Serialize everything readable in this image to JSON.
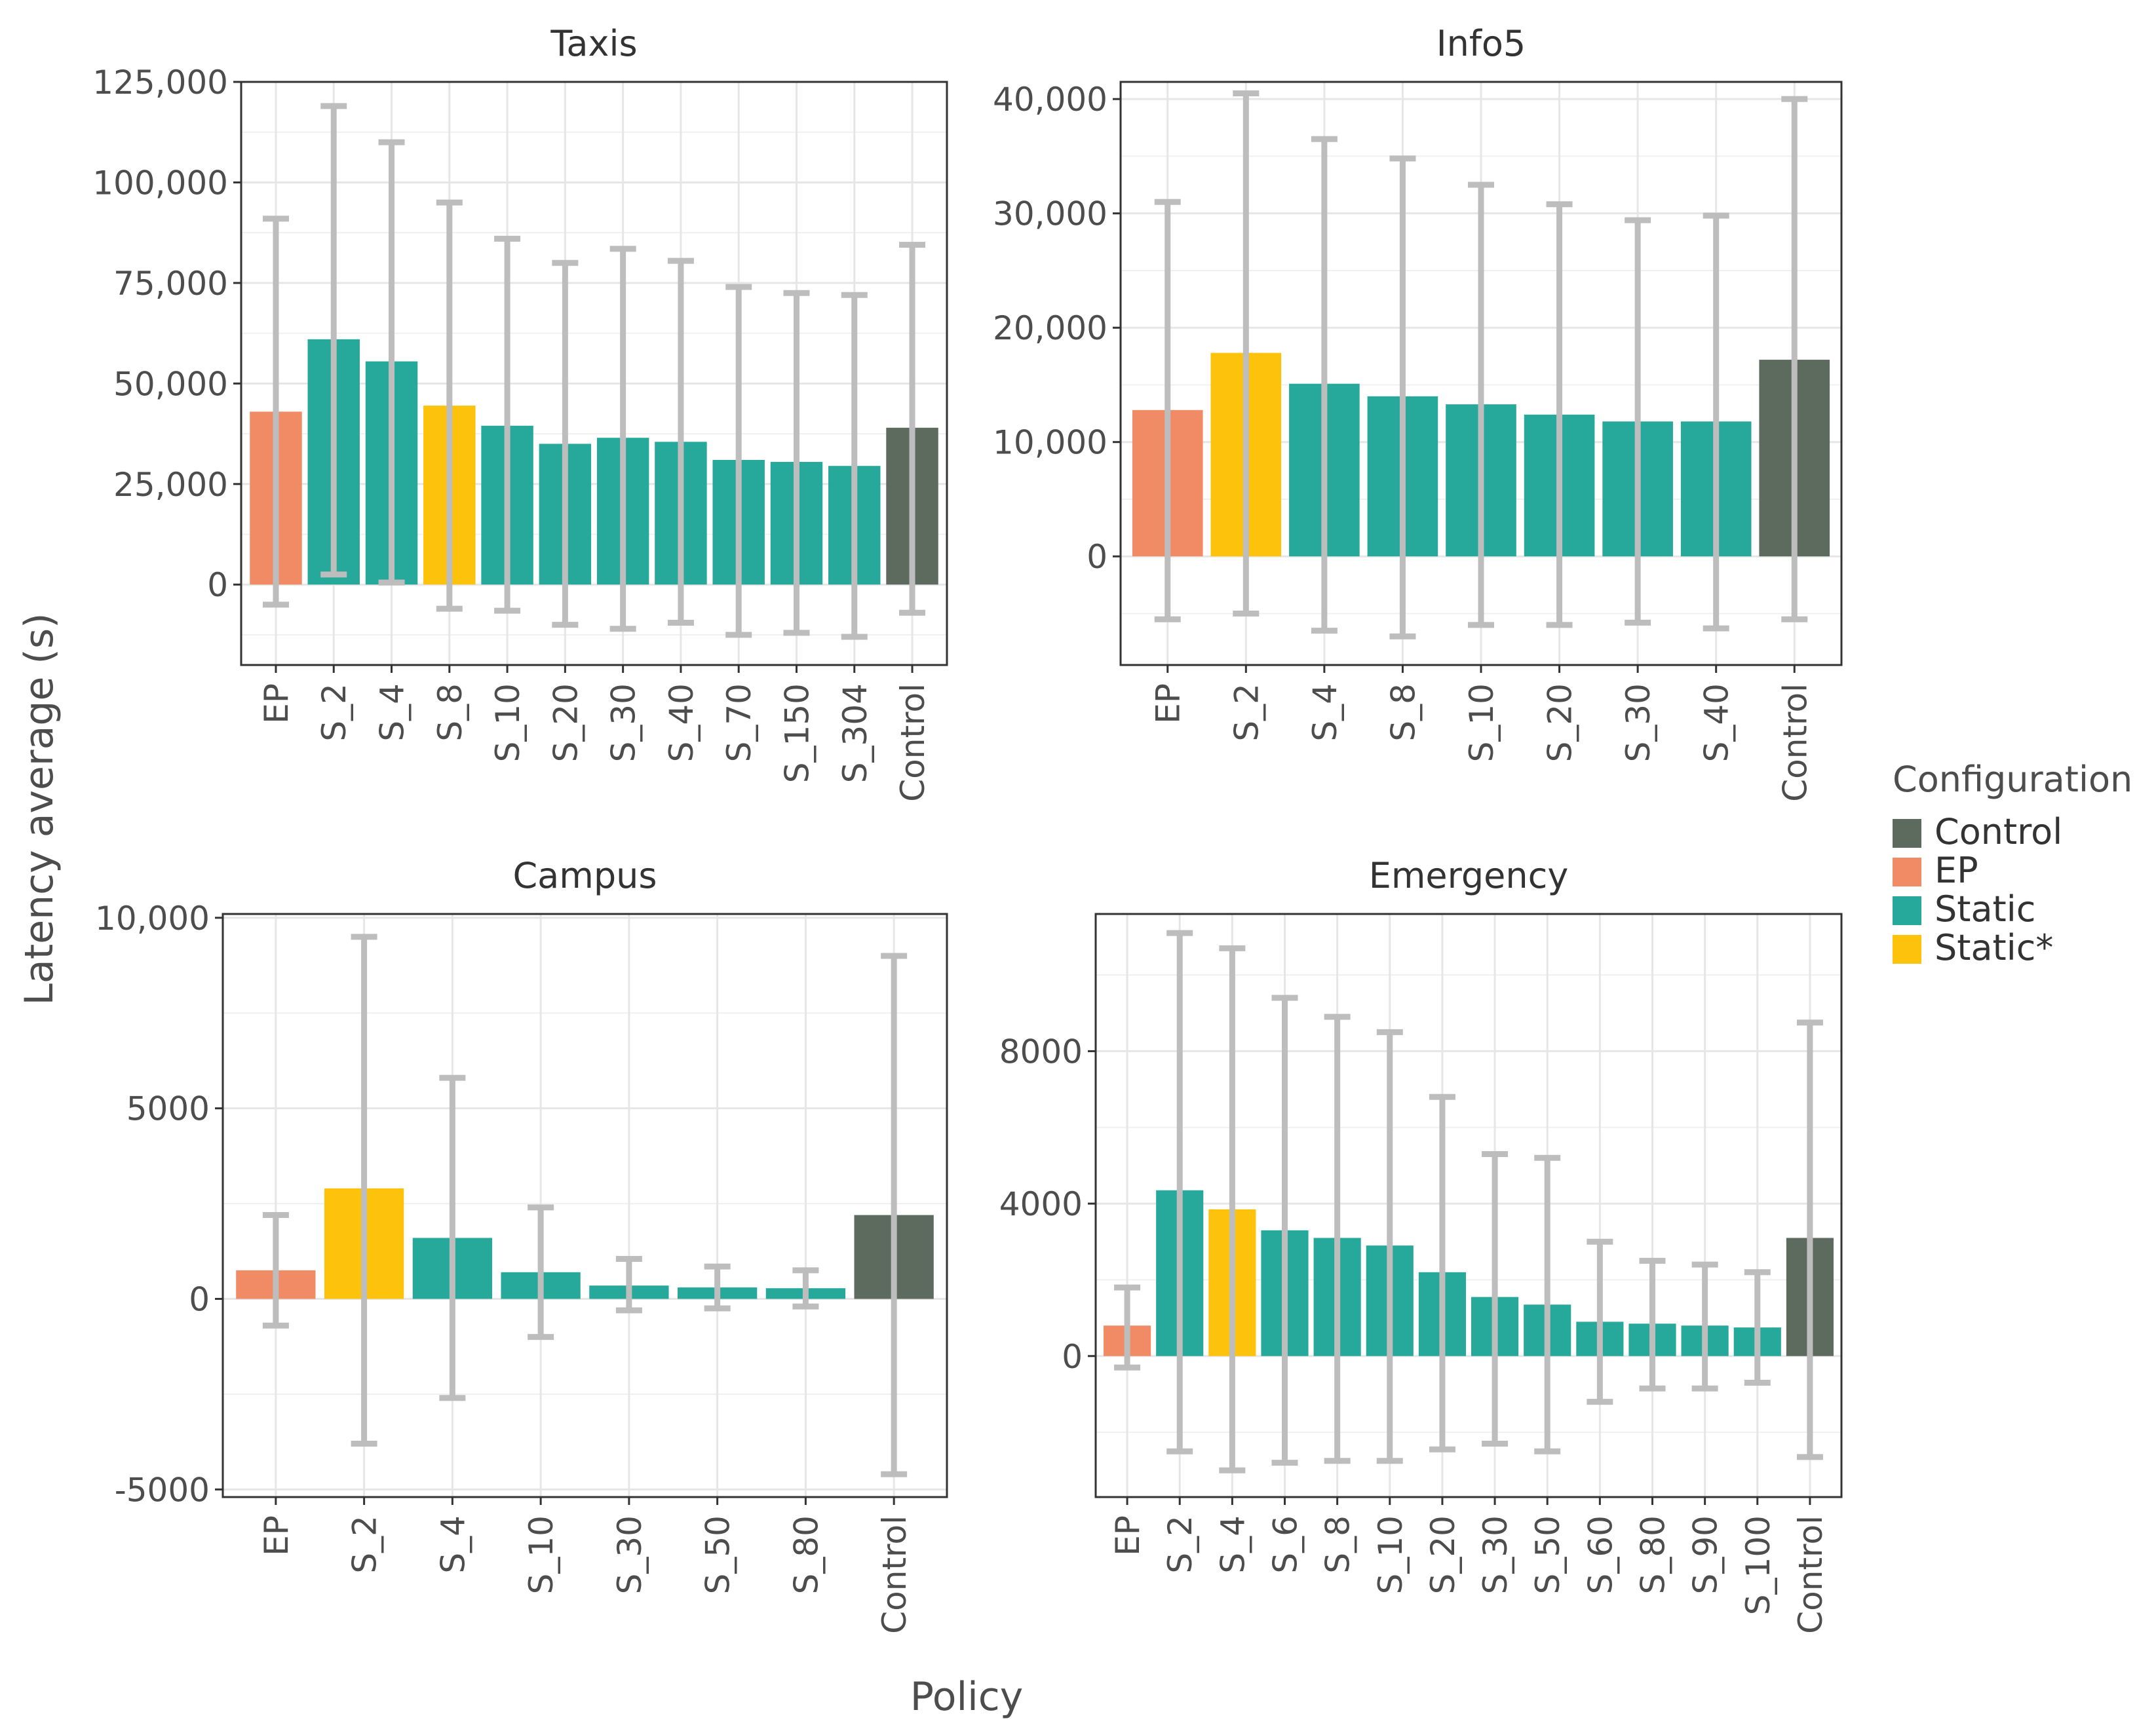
{
  "y_axis_title": "Latency average (s)",
  "x_axis_title": "Policy",
  "legend": {
    "title": "Configuration",
    "entries": [
      {
        "label": "Control",
        "color": "#5d6b5e"
      },
      {
        "label": "EP",
        "color": "#f08b66"
      },
      {
        "label": "Static",
        "color": "#26a99a"
      },
      {
        "label": "Static*",
        "color": "#fcc20c"
      }
    ]
  },
  "chart_data": [
    {
      "type": "bar",
      "title": "Taxis",
      "xlabel": "Policy",
      "ylabel": "Latency average (s)",
      "ylim": [
        -20000,
        125000
      ],
      "yticks": [
        0,
        25000,
        50000,
        75000,
        100000,
        125000
      ],
      "ytick_labels": [
        "0",
        "25,000",
        "50,000",
        "75,000",
        "100,000",
        "125,000"
      ],
      "categories": [
        "EP",
        "S_2",
        "S_4",
        "S_8",
        "S_10",
        "S_20",
        "S_30",
        "S_40",
        "S_70",
        "S_150",
        "S_304",
        "Control"
      ],
      "configuration": [
        "EP",
        "Static",
        "Static",
        "Static*",
        "Static",
        "Static",
        "Static",
        "Static",
        "Static",
        "Static",
        "Static",
        "Control"
      ],
      "values": [
        43000,
        61000,
        55500,
        44500,
        39500,
        35000,
        36500,
        35500,
        31000,
        30500,
        29500,
        39000
      ],
      "error_low": [
        -5000,
        2500,
        500,
        -6000,
        -6500,
        -10000,
        -11000,
        -9500,
        -12500,
        -12000,
        -13000,
        -7000
      ],
      "error_high": [
        91000,
        119000,
        110000,
        95000,
        86000,
        80000,
        83500,
        80500,
        74000,
        72500,
        72000,
        84500
      ]
    },
    {
      "type": "bar",
      "title": "Info5",
      "xlabel": "Policy",
      "ylabel": "Latency average (s)",
      "ylim": [
        -9500,
        41500
      ],
      "yticks": [
        0,
        10000,
        20000,
        30000,
        40000
      ],
      "ytick_labels": [
        "0",
        "10,000",
        "20,000",
        "30,000",
        "40,000"
      ],
      "categories": [
        "EP",
        "S_2",
        "S_4",
        "S_8",
        "S_10",
        "S_20",
        "S_30",
        "S_40",
        "Control"
      ],
      "configuration": [
        "EP",
        "Static*",
        "Static",
        "Static",
        "Static",
        "Static",
        "Static",
        "Static",
        "Control"
      ],
      "values": [
        12800,
        17800,
        15100,
        14000,
        13300,
        12400,
        11800,
        11800,
        17200
      ],
      "error_low": [
        -5500,
        -5000,
        -6500,
        -7000,
        -6000,
        -6000,
        -5800,
        -6300,
        -5500
      ],
      "error_high": [
        31000,
        40500,
        36500,
        34800,
        32500,
        30800,
        29400,
        29800,
        40000
      ]
    },
    {
      "type": "bar",
      "title": "Campus",
      "xlabel": "Policy",
      "ylabel": "Latency average (s)",
      "ylim": [
        -5200,
        10100
      ],
      "yticks": [
        -5000,
        0,
        5000,
        10000
      ],
      "ytick_labels": [
        "-5000",
        "0",
        "5000",
        "10,000"
      ],
      "categories": [
        "EP",
        "S_2",
        "S_4",
        "S_10",
        "S_30",
        "S_50",
        "S_80",
        "Control"
      ],
      "configuration": [
        "EP",
        "Static*",
        "Static",
        "Static",
        "Static",
        "Static",
        "Static",
        "Control"
      ],
      "values": [
        750,
        2900,
        1600,
        700,
        350,
        300,
        280,
        2200
      ],
      "error_low": [
        -700,
        -3800,
        -2600,
        -1000,
        -300,
        -250,
        -200,
        -4600
      ],
      "error_high": [
        2200,
        9500,
        5800,
        2400,
        1050,
        850,
        750,
        9000
      ]
    },
    {
      "type": "bar",
      "title": "Emergency",
      "xlabel": "Policy",
      "ylabel": "Latency average (s)",
      "ylim": [
        -3700,
        11600
      ],
      "yticks": [
        0,
        4000,
        8000
      ],
      "ytick_labels": [
        "0",
        "4000",
        "8000"
      ],
      "categories": [
        "EP",
        "S_2",
        "S_4",
        "S_6",
        "S_8",
        "S_10",
        "S_20",
        "S_30",
        "S_50",
        "S_60",
        "S_80",
        "S_90",
        "S_100",
        "Control"
      ],
      "configuration": [
        "EP",
        "Static",
        "Static*",
        "Static",
        "Static",
        "Static",
        "Static",
        "Static",
        "Static",
        "Static",
        "Static",
        "Static",
        "Static",
        "Control"
      ],
      "values": [
        800,
        4350,
        3850,
        3300,
        3100,
        2900,
        2200,
        1550,
        1350,
        900,
        850,
        800,
        750,
        3100
      ],
      "error_low": [
        -300,
        -2500,
        -3000,
        -2800,
        -2750,
        -2750,
        -2450,
        -2300,
        -2500,
        -1200,
        -850,
        -850,
        -700,
        -2650
      ],
      "error_high": [
        1800,
        11100,
        10700,
        9400,
        8900,
        8500,
        6800,
        5300,
        5200,
        3000,
        2500,
        2400,
        2200,
        8750
      ]
    }
  ]
}
